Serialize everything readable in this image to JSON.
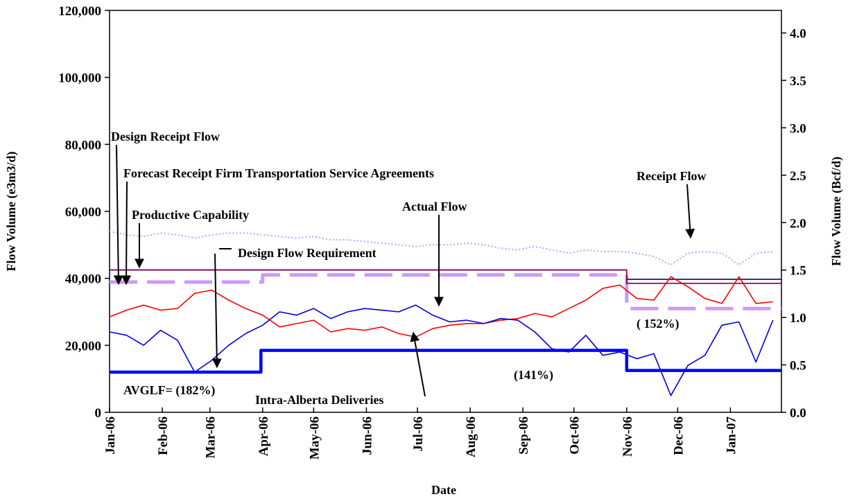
{
  "chart_data": {
    "type": "line",
    "x_label": "Date",
    "y_label": "Flow Volume (e3m3/d)",
    "y2_label": "Flow Volume  (Bcf/d)",
    "xlim": [
      0,
      395
    ],
    "xticks": [
      {
        "value": 0,
        "label": "Jan-06"
      },
      {
        "value": 31,
        "label": "Feb-06"
      },
      {
        "value": 59,
        "label": "Mar-06"
      },
      {
        "value": 90,
        "label": "Apr-06"
      },
      {
        "value": 120,
        "label": "May-06"
      },
      {
        "value": 151,
        "label": "Jun-06"
      },
      {
        "value": 181,
        "label": "Jul-06"
      },
      {
        "value": 212,
        "label": "Aug-06"
      },
      {
        "value": 243,
        "label": "Sep-06"
      },
      {
        "value": 273,
        "label": "Oct-06"
      },
      {
        "value": 304,
        "label": "Nov-06"
      },
      {
        "value": 334,
        "label": "Dec-06"
      },
      {
        "value": 365,
        "label": "Jan-07"
      }
    ],
    "ylim": [
      0,
      120000
    ],
    "yticks": [
      0,
      {
        "value": 20000,
        "label": "20,000"
      },
      {
        "value": 40000,
        "label": "40,000"
      },
      {
        "value": 60000,
        "label": "60,000"
      },
      {
        "value": 80000,
        "label": "80,000"
      },
      {
        "value": 100000,
        "label": "100,000"
      },
      {
        "value": 120000,
        "label": "120,000"
      }
    ],
    "y2lim": [
      0,
      4.2377
    ],
    "y2ticks": [
      {
        "value": 0,
        "label": "0.0"
      },
      {
        "value": 0.5,
        "label": "0.5"
      },
      {
        "value": 1,
        "label": "1.0"
      },
      {
        "value": 1.5,
        "label": "1.5"
      },
      {
        "value": 2,
        "label": "2.0"
      },
      {
        "value": 2.5,
        "label": "2.5"
      },
      {
        "value": 3,
        "label": "3.0"
      },
      {
        "value": 3.5,
        "label": "3.5"
      },
      {
        "value": 4,
        "label": "4.0"
      }
    ],
    "series": [
      {
        "color": "#cc99ff",
        "style": "dotted",
        "x": [
          0,
          10,
          20,
          30,
          40,
          50,
          60,
          70,
          80,
          90,
          100,
          110,
          120,
          130,
          140,
          150,
          160,
          170,
          180,
          190,
          200,
          210,
          220,
          230,
          240,
          250,
          260,
          270,
          280,
          290,
          300,
          310,
          320,
          330,
          340,
          350,
          360,
          370,
          380,
          390
        ],
        "values": [
          54000,
          53000,
          52500,
          53500,
          53000,
          52000,
          53000,
          53500,
          53500,
          53000,
          52500,
          52000,
          52500,
          51500,
          51500,
          51000,
          50500,
          50000,
          49500,
          50000,
          50000,
          50500,
          50000,
          49000,
          48500,
          49500,
          48500,
          47500,
          48500,
          48000,
          48000,
          47500,
          46500,
          44000,
          47500,
          48000,
          47500,
          44000,
          47500,
          48000
        ]
      },
      {
        "color": "#cc99ff",
        "style": "dashed",
        "x": [
          0,
          90,
          90,
          304,
          304,
          395
        ],
        "values": [
          38900,
          38900,
          41000,
          41000,
          31000,
          31000
        ]
      },
      {
        "color": "#000080",
        "style": "solid",
        "x": [
          0,
          304,
          304,
          395
        ],
        "values": [
          42500,
          42500,
          39700,
          39700
        ]
      },
      {
        "color": "#800040",
        "style": "solid",
        "x": [
          0,
          304,
          304,
          395
        ],
        "values": [
          42500,
          42500,
          38500,
          38500
        ]
      },
      {
        "color": "#ff0000",
        "style": "solid",
        "x": [
          0,
          10,
          20,
          30,
          40,
          50,
          60,
          70,
          80,
          90,
          100,
          110,
          120,
          130,
          140,
          150,
          160,
          170,
          180,
          190,
          200,
          210,
          220,
          230,
          240,
          250,
          260,
          270,
          280,
          290,
          300,
          310,
          320,
          330,
          340,
          350,
          360,
          370,
          380,
          390
        ],
        "values": [
          28500,
          30500,
          32000,
          30500,
          31000,
          35500,
          36500,
          33500,
          31000,
          29000,
          25500,
          26500,
          27500,
          24000,
          25000,
          24500,
          25500,
          23500,
          22500,
          25000,
          26000,
          26500,
          26500,
          27500,
          28000,
          29500,
          28500,
          31000,
          33500,
          37000,
          38000,
          34000,
          33500,
          40500,
          37500,
          34000,
          32500,
          40500,
          32500,
          33000
        ]
      },
      {
        "color": "#0000dd",
        "style": "solid",
        "x": [
          0,
          10,
          20,
          30,
          40,
          50,
          60,
          70,
          80,
          90,
          100,
          110,
          120,
          130,
          140,
          150,
          160,
          170,
          180,
          190,
          200,
          210,
          220,
          230,
          240,
          250,
          260,
          270,
          280,
          290,
          300,
          310,
          320,
          330,
          340,
          350,
          360,
          370,
          380,
          390
        ],
        "values": [
          24000,
          23000,
          20000,
          24500,
          21500,
          12000,
          15500,
          20000,
          23500,
          26000,
          30000,
          29000,
          31000,
          28000,
          30000,
          31000,
          30500,
          30000,
          32000,
          29000,
          27000,
          27500,
          26500,
          28000,
          27500,
          24000,
          19000,
          18000,
          23000,
          17000,
          18000,
          16000,
          17500,
          5000,
          14000,
          17000,
          26000,
          27000,
          15000,
          27500
        ]
      },
      {
        "color": "#0000ff",
        "style": "thick",
        "x": [
          0,
          89,
          89,
          304,
          304,
          395
        ],
        "values": [
          12000,
          12000,
          18500,
          18500,
          12500,
          12500
        ]
      }
    ],
    "annotations": [
      "Design Receipt Flow",
      "Forecast Receipt Firm Transportation Service Agreements",
      "Productive Capability",
      "Design Flow Requirement",
      "Actual Flow",
      "Receipt Flow",
      "( 152%)",
      "(141%)",
      "AVGLF= (182%)",
      "Intra-Alberta Deliveries"
    ]
  }
}
